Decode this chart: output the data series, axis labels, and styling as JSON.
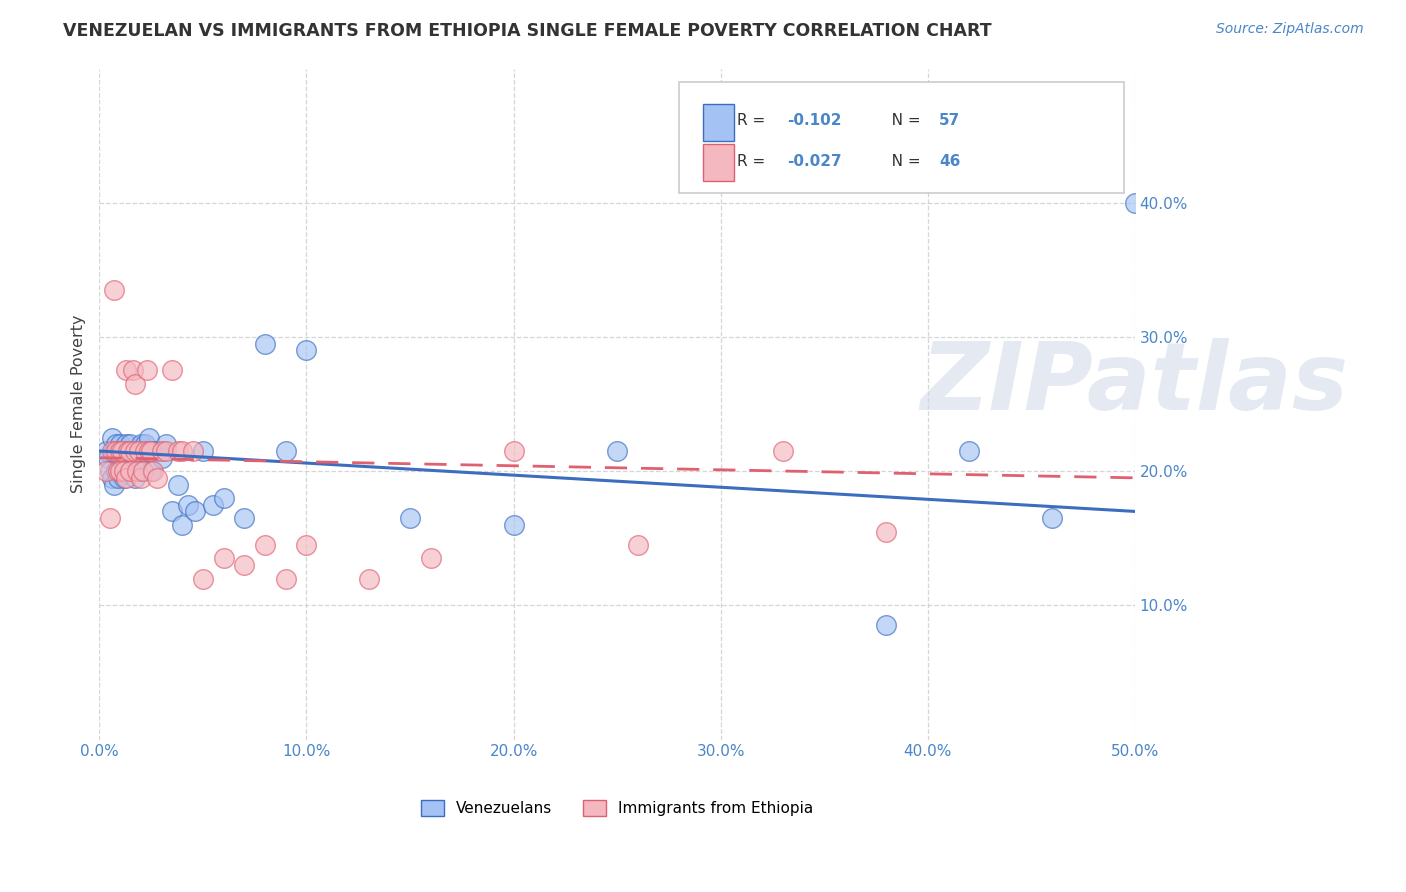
{
  "title": "VENEZUELAN VS IMMIGRANTS FROM ETHIOPIA SINGLE FEMALE POVERTY CORRELATION CHART",
  "source": "Source: ZipAtlas.com",
  "xlim": [
    0.0,
    0.5
  ],
  "ylim": [
    0.0,
    0.5
  ],
  "xtick_vals": [
    0.0,
    0.1,
    0.2,
    0.3,
    0.4,
    0.5
  ],
  "ytick_vals": [
    0.1,
    0.2,
    0.3,
    0.4
  ],
  "color_blue": "#a4c2f4",
  "color_pink": "#f4b8c1",
  "color_blue_line": "#3d6dbf",
  "color_pink_line": "#e06070",
  "color_axis": "#4a86c8",
  "watermark": "ZIPatlas",
  "ven_x": [
    0.003,
    0.004,
    0.005,
    0.006,
    0.006,
    0.007,
    0.007,
    0.008,
    0.008,
    0.009,
    0.009,
    0.01,
    0.01,
    0.011,
    0.011,
    0.012,
    0.012,
    0.013,
    0.013,
    0.014,
    0.015,
    0.015,
    0.016,
    0.017,
    0.017,
    0.018,
    0.019,
    0.02,
    0.02,
    0.021,
    0.022,
    0.023,
    0.024,
    0.025,
    0.026,
    0.028,
    0.03,
    0.032,
    0.035,
    0.038,
    0.04,
    0.043,
    0.046,
    0.05,
    0.055,
    0.06,
    0.07,
    0.08,
    0.09,
    0.1,
    0.15,
    0.2,
    0.25,
    0.38,
    0.42,
    0.46,
    0.5
  ],
  "ven_y": [
    0.215,
    0.21,
    0.2,
    0.195,
    0.225,
    0.19,
    0.215,
    0.2,
    0.22,
    0.215,
    0.195,
    0.205,
    0.22,
    0.21,
    0.2,
    0.215,
    0.195,
    0.22,
    0.215,
    0.215,
    0.2,
    0.22,
    0.215,
    0.215,
    0.195,
    0.21,
    0.215,
    0.2,
    0.22,
    0.215,
    0.22,
    0.215,
    0.225,
    0.2,
    0.215,
    0.215,
    0.21,
    0.22,
    0.17,
    0.19,
    0.16,
    0.175,
    0.17,
    0.215,
    0.175,
    0.18,
    0.165,
    0.295,
    0.215,
    0.29,
    0.165,
    0.16,
    0.215,
    0.085,
    0.215,
    0.165,
    0.4
  ],
  "eth_x": [
    0.003,
    0.005,
    0.006,
    0.007,
    0.008,
    0.009,
    0.01,
    0.01,
    0.011,
    0.012,
    0.013,
    0.013,
    0.014,
    0.015,
    0.015,
    0.016,
    0.017,
    0.017,
    0.018,
    0.019,
    0.02,
    0.021,
    0.022,
    0.023,
    0.024,
    0.025,
    0.026,
    0.028,
    0.03,
    0.032,
    0.035,
    0.038,
    0.04,
    0.045,
    0.05,
    0.06,
    0.07,
    0.08,
    0.09,
    0.1,
    0.13,
    0.16,
    0.2,
    0.26,
    0.33,
    0.38
  ],
  "eth_y": [
    0.2,
    0.165,
    0.215,
    0.335,
    0.215,
    0.2,
    0.215,
    0.2,
    0.215,
    0.2,
    0.195,
    0.275,
    0.215,
    0.215,
    0.2,
    0.275,
    0.215,
    0.265,
    0.2,
    0.215,
    0.195,
    0.2,
    0.215,
    0.275,
    0.215,
    0.215,
    0.2,
    0.195,
    0.215,
    0.215,
    0.275,
    0.215,
    0.215,
    0.215,
    0.12,
    0.135,
    0.13,
    0.145,
    0.12,
    0.145,
    0.12,
    0.135,
    0.215,
    0.145,
    0.215,
    0.155
  ]
}
